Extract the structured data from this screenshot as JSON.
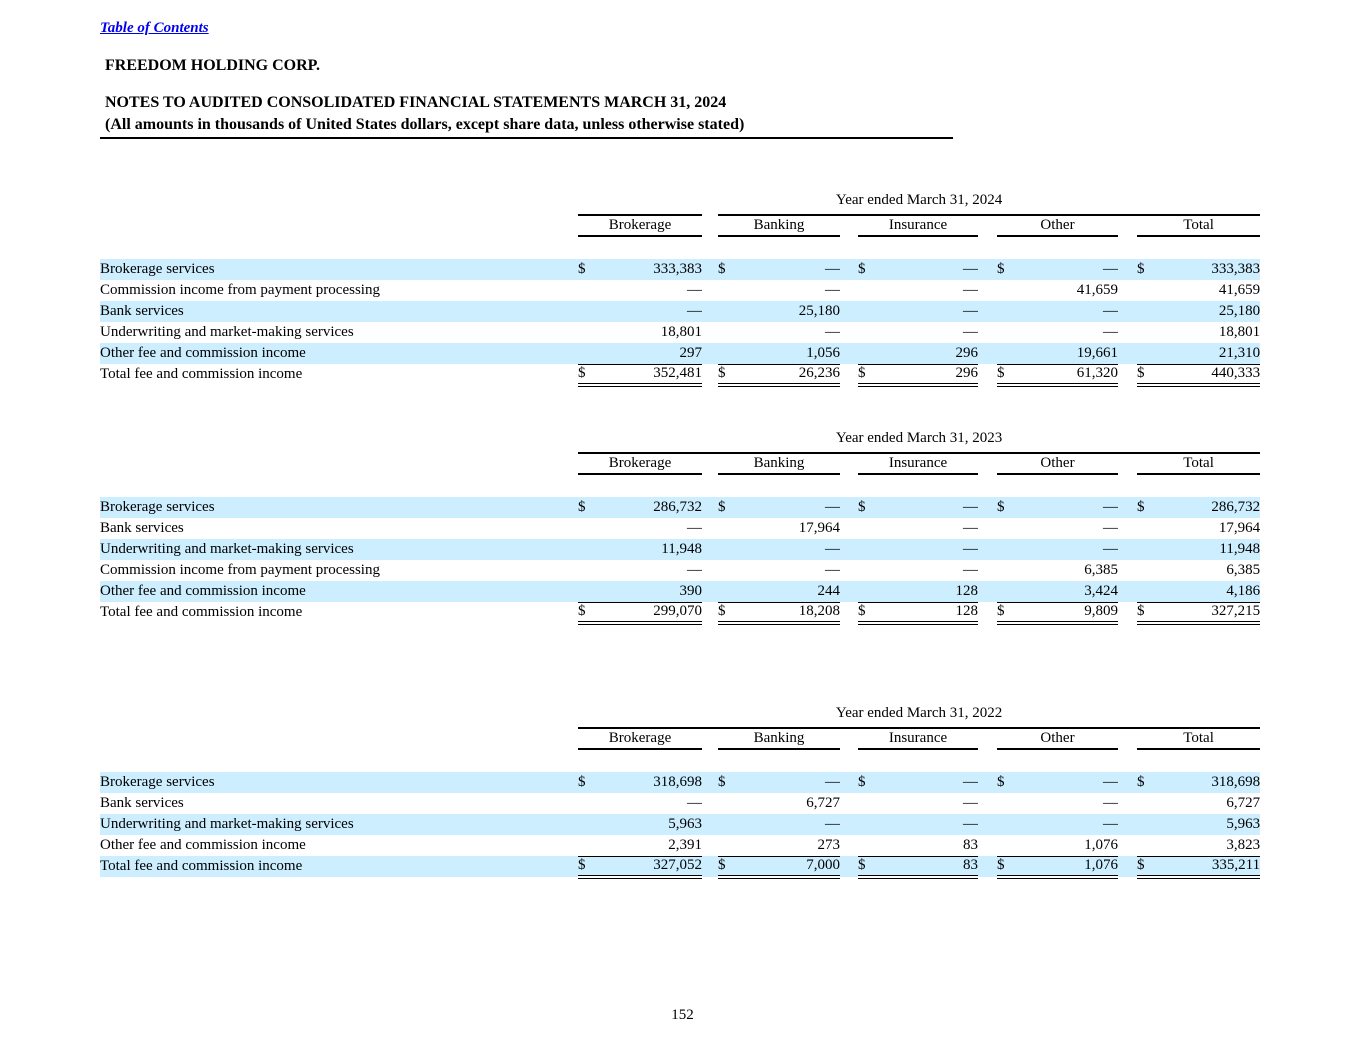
{
  "page": {
    "toc_link": "Table of Contents",
    "company": "FREEDOM HOLDING CORP.",
    "title": "NOTES TO AUDITED CONSOLIDATED FINANCIAL STATEMENTS MARCH 31, 2024",
    "subtitle": "(All amounts in thousands of United States dollars, except share data, unless otherwise stated)",
    "page_number": "152"
  },
  "colors": {
    "highlight": "#cceeff",
    "link": "#0000ee"
  },
  "tables": [
    {
      "year_header": "Year ended March 31, 2024",
      "split_rule": true,
      "columns": [
        "Brokerage",
        "Banking",
        "Insurance",
        "Other",
        "Total"
      ],
      "rows": [
        {
          "label": "Brokerage services",
          "dollar": true,
          "shaded": true,
          "values": [
            "333,383",
            "—",
            "—",
            "—",
            "333,383"
          ]
        },
        {
          "label": "Commission income from payment processing",
          "dollar": false,
          "shaded": false,
          "values": [
            "—",
            "—",
            "—",
            "41,659",
            "41,659"
          ]
        },
        {
          "label": "Bank services",
          "dollar": false,
          "shaded": true,
          "values": [
            "—",
            "25,180",
            "—",
            "—",
            "25,180"
          ]
        },
        {
          "label": "Underwriting and market-making services",
          "dollar": false,
          "shaded": false,
          "values": [
            "18,801",
            "—",
            "—",
            "—",
            "18,801"
          ]
        },
        {
          "label": "Other fee and commission income",
          "dollar": false,
          "shaded": true,
          "rule_below": true,
          "values": [
            "297",
            "1,056",
            "296",
            "19,661",
            "21,310"
          ]
        },
        {
          "label": "Total fee and commission income",
          "dollar": true,
          "shaded": false,
          "total": true,
          "values": [
            "352,481",
            "26,236",
            "296",
            "61,320",
            "440,333"
          ]
        }
      ]
    },
    {
      "year_header": "Year ended March 31, 2023",
      "split_rule": false,
      "columns": [
        "Brokerage",
        "Banking",
        "Insurance",
        "Other",
        "Total"
      ],
      "rows": [
        {
          "label": "Brokerage services",
          "dollar": true,
          "shaded": true,
          "values": [
            "286,732",
            "—",
            "—",
            "—",
            "286,732"
          ]
        },
        {
          "label": "Bank services",
          "dollar": false,
          "shaded": false,
          "values": [
            "—",
            "17,964",
            "—",
            "—",
            "17,964"
          ]
        },
        {
          "label": "Underwriting and market-making services",
          "dollar": false,
          "shaded": true,
          "values": [
            "11,948",
            "—",
            "—",
            "—",
            "11,948"
          ]
        },
        {
          "label": "Commission income from payment processing",
          "dollar": false,
          "shaded": false,
          "values": [
            "—",
            "—",
            "—",
            "6,385",
            "6,385"
          ]
        },
        {
          "label": "Other fee and commission income",
          "dollar": false,
          "shaded": true,
          "rule_below": true,
          "values": [
            "390",
            "244",
            "128",
            "3,424",
            "4,186"
          ]
        },
        {
          "label": "Total fee and commission income",
          "dollar": true,
          "shaded": false,
          "total": true,
          "values": [
            "299,070",
            "18,208",
            "128",
            "9,809",
            "327,215"
          ]
        }
      ]
    },
    {
      "year_header": "Year ended March 31, 2022",
      "split_rule": false,
      "columns": [
        "Brokerage",
        "Banking",
        "Insurance",
        "Other",
        "Total"
      ],
      "rows": [
        {
          "label": "Brokerage services",
          "dollar": true,
          "shaded": true,
          "values": [
            "318,698",
            "—",
            "—",
            "—",
            "318,698"
          ]
        },
        {
          "label": "Bank services",
          "dollar": false,
          "shaded": false,
          "values": [
            "—",
            "6,727",
            "—",
            "—",
            "6,727"
          ]
        },
        {
          "label": "Underwriting and market-making services",
          "dollar": false,
          "shaded": true,
          "values": [
            "5,963",
            "—",
            "—",
            "—",
            "5,963"
          ]
        },
        {
          "label": "Other fee and commission income",
          "dollar": false,
          "shaded": false,
          "rule_below": true,
          "values": [
            "2,391",
            "273",
            "83",
            "1,076",
            "3,823"
          ]
        },
        {
          "label": "Total fee and commission income",
          "dollar": true,
          "shaded": true,
          "total": true,
          "values": [
            "327,052",
            "7,000",
            "83",
            "1,076",
            "335,211"
          ]
        }
      ]
    }
  ]
}
